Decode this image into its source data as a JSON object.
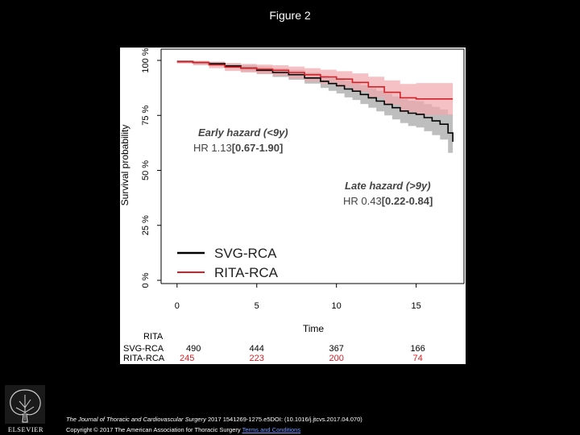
{
  "figure_title": "Figure 2",
  "footer": {
    "journal": "The Journal of Thoracic and Cardiovascular Surgery",
    "citation": "2017 1541269-1275.e5DOI: (10.1016/j.jtcvs.2017.04.070)",
    "copyright": "Copyright © 2017 The American Association for Thoracic Surgery",
    "terms_link": "Terms and Conditions"
  },
  "logo": {
    "text": "ELSEVIER"
  },
  "colors": {
    "black_series": "#000000",
    "red_series": "#d42027",
    "black_band": "#a8a8a8",
    "red_band": "#f2a7ab"
  },
  "chart_data": {
    "type": "line",
    "subtype": "kaplan-meier",
    "xlabel": "Time",
    "ylabel": "Survival probability",
    "xlim": [
      -1,
      18
    ],
    "ylim": [
      0,
      100
    ],
    "x_ticks": [
      "0",
      "5",
      "10",
      "15"
    ],
    "x_tick_values": [
      0,
      5,
      10,
      15
    ],
    "y_ticks": [
      "0 %",
      "25 %",
      "50 %",
      "75 %",
      "100 %"
    ],
    "y_tick_values": [
      0,
      25,
      50,
      75,
      100
    ],
    "series": [
      {
        "name": "SVG-RCA",
        "color": "#000000",
        "t": [
          0,
          1,
          2,
          3,
          4,
          5,
          6,
          7,
          8,
          9,
          9.5,
          10,
          10.5,
          11,
          11.5,
          12,
          12.5,
          13,
          13.5,
          14,
          14.5,
          15,
          15.5,
          16,
          16.5,
          17,
          17.3
        ],
        "s": [
          99.5,
          99,
          98.5,
          97.5,
          96.5,
          95.5,
          94.5,
          93.5,
          92,
          90.5,
          89.5,
          88.5,
          87,
          86,
          84.5,
          83,
          81.5,
          80,
          78.5,
          77,
          76,
          75.5,
          74,
          72.5,
          71,
          67,
          63
        ],
        "lower": [
          98.8,
          98.2,
          97.5,
          96.2,
          95,
          93.8,
          92.5,
          91.2,
          89.5,
          87.5,
          86.2,
          85,
          83.2,
          82,
          80.2,
          78.5,
          76.8,
          75,
          73.2,
          71.5,
          70.2,
          69.5,
          67.8,
          66,
          64,
          58,
          53
        ],
        "upper": [
          100,
          99.7,
          99.4,
          98.7,
          98,
          97.2,
          96.4,
          95.7,
          94.4,
          93.2,
          92.6,
          91.9,
          90.7,
          89.9,
          88.7,
          87.4,
          86.2,
          84.9,
          83.6,
          82.4,
          81.7,
          81.4,
          80.1,
          78.9,
          77.7,
          75.5,
          73
        ]
      },
      {
        "name": "RITA-RCA",
        "color": "#d42027",
        "t": [
          0,
          1,
          2,
          3,
          4,
          5,
          6,
          7,
          8,
          9,
          10,
          11,
          12,
          13,
          14,
          15,
          17.3
        ],
        "s": [
          99.5,
          99,
          98,
          97,
          96.5,
          96,
          95.5,
          94.5,
          93.5,
          92.5,
          91.5,
          90,
          88,
          85.5,
          83,
          82.5,
          82.5
        ],
        "lower": [
          98.6,
          97.8,
          96.5,
          95.2,
          94.5,
          93.8,
          93,
          91.8,
          90.5,
          89.2,
          87.8,
          85.8,
          83.2,
          79.8,
          76.5,
          75.2,
          75.2
        ],
        "upper": [
          100,
          99.8,
          99.3,
          98.7,
          98.4,
          98.1,
          97.8,
          97.2,
          96.5,
          95.8,
          95.1,
          94.1,
          92.6,
          90.9,
          89.3,
          89.7,
          89.7
        ]
      }
    ],
    "annotations": {
      "early_title": "Early hazard (<9y)",
      "early_hr_label": "HR 1.13",
      "early_ci": "[0.67-1.90]",
      "late_title": "Late hazard (>9y)",
      "late_hr_label": "HR 0.43",
      "late_ci": "[0.22-0.84]"
    },
    "legend": {
      "position": "bottom-left",
      "entries": [
        "SVG-RCA",
        "RITA-RCA"
      ]
    },
    "risk_table": {
      "title": "RITA",
      "times": [
        0,
        5,
        10,
        15
      ],
      "rows": [
        {
          "label": "SVG-RCA",
          "values": [
            "490",
            "444",
            "367",
            "166"
          ],
          "color": "#000000"
        },
        {
          "label": "RITA-RCA",
          "values": [
            "245",
            "223",
            "200",
            "74"
          ],
          "color": "#d42027"
        }
      ]
    }
  }
}
